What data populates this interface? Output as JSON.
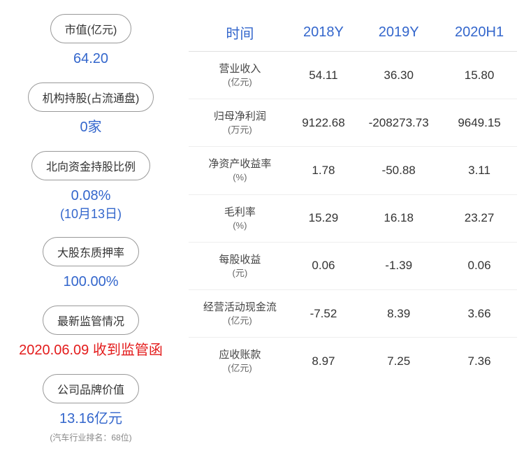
{
  "left": [
    {
      "label": "市值(亿元)",
      "value": "64.20",
      "color": "blue"
    },
    {
      "label": "机构持股(占流通盘)",
      "value": "0家",
      "color": "blue"
    },
    {
      "label": "北向资金持股比例",
      "value": "0.08%",
      "sub": "(10月13日)",
      "color": "blue"
    },
    {
      "label": "大股东质押率",
      "value": "100.00%",
      "color": "blue"
    },
    {
      "label": "最新监管情况",
      "value": "2020.06.09 收到监管函",
      "color": "red"
    },
    {
      "label": "公司品牌价值",
      "value": "13.16亿元",
      "note": "(汽车行业排名：68位)",
      "color": "blue"
    }
  ],
  "table": {
    "headers": [
      "时间",
      "2018Y",
      "2019Y",
      "2020H1"
    ],
    "rows": [
      {
        "name": "营业收入",
        "unit": "(亿元)",
        "v": [
          "54.11",
          "36.30",
          "15.80"
        ]
      },
      {
        "name": "归母净利润",
        "unit": "(万元)",
        "v": [
          "9122.68",
          "-208273.73",
          "9649.15"
        ]
      },
      {
        "name": "净资产收益率",
        "unit": "(%)",
        "v": [
          "1.78",
          "-50.88",
          "3.11"
        ]
      },
      {
        "name": "毛利率",
        "unit": "(%)",
        "v": [
          "15.29",
          "16.18",
          "23.27"
        ]
      },
      {
        "name": "每股收益",
        "unit": "(元)",
        "v": [
          "0.06",
          "-1.39",
          "0.06"
        ]
      },
      {
        "name": "经营活动现金流",
        "unit": "(亿元)",
        "v": [
          "-7.52",
          "8.39",
          "3.66"
        ]
      },
      {
        "name": "应收账款",
        "unit": "(亿元)",
        "v": [
          "8.97",
          "7.25",
          "7.36"
        ]
      }
    ]
  }
}
